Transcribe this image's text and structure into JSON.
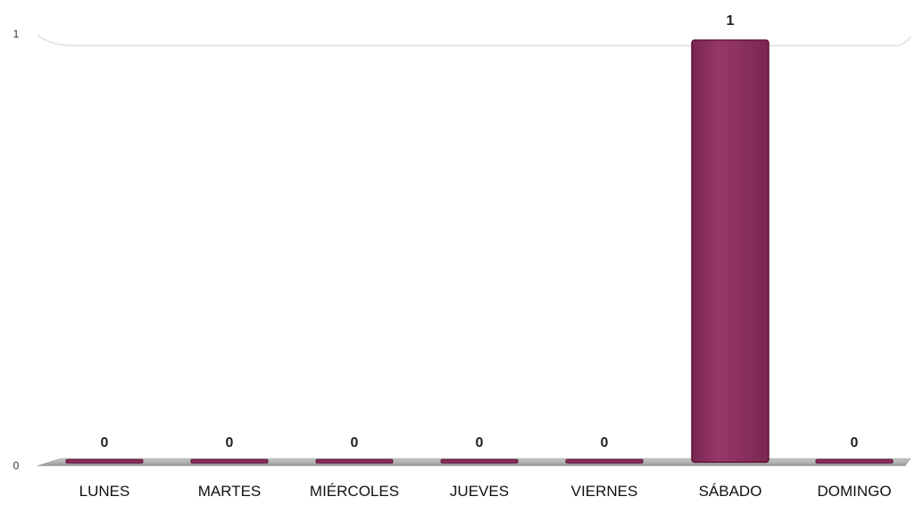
{
  "chart_data": {
    "type": "bar",
    "title": "",
    "xlabel": "",
    "ylabel": "",
    "categories": [
      "LUNES",
      "MARTES",
      "MIÉRCOLES",
      "JUEVES",
      "VIERNES",
      "SÁBADO",
      "DOMINGO"
    ],
    "values": [
      0,
      0,
      0,
      0,
      0,
      1,
      0
    ],
    "data_labels": [
      "0",
      "0",
      "0",
      "0",
      "0",
      "1",
      "0"
    ],
    "ylim": [
      0,
      1
    ],
    "yticks": [
      "0",
      "1"
    ],
    "grid": true,
    "legend": "none",
    "colors": {
      "bar": "#8b2f5e",
      "bar_edge": "#5e1238",
      "floor": "#a9a9a9",
      "gridline": "#e6e6e6"
    }
  }
}
